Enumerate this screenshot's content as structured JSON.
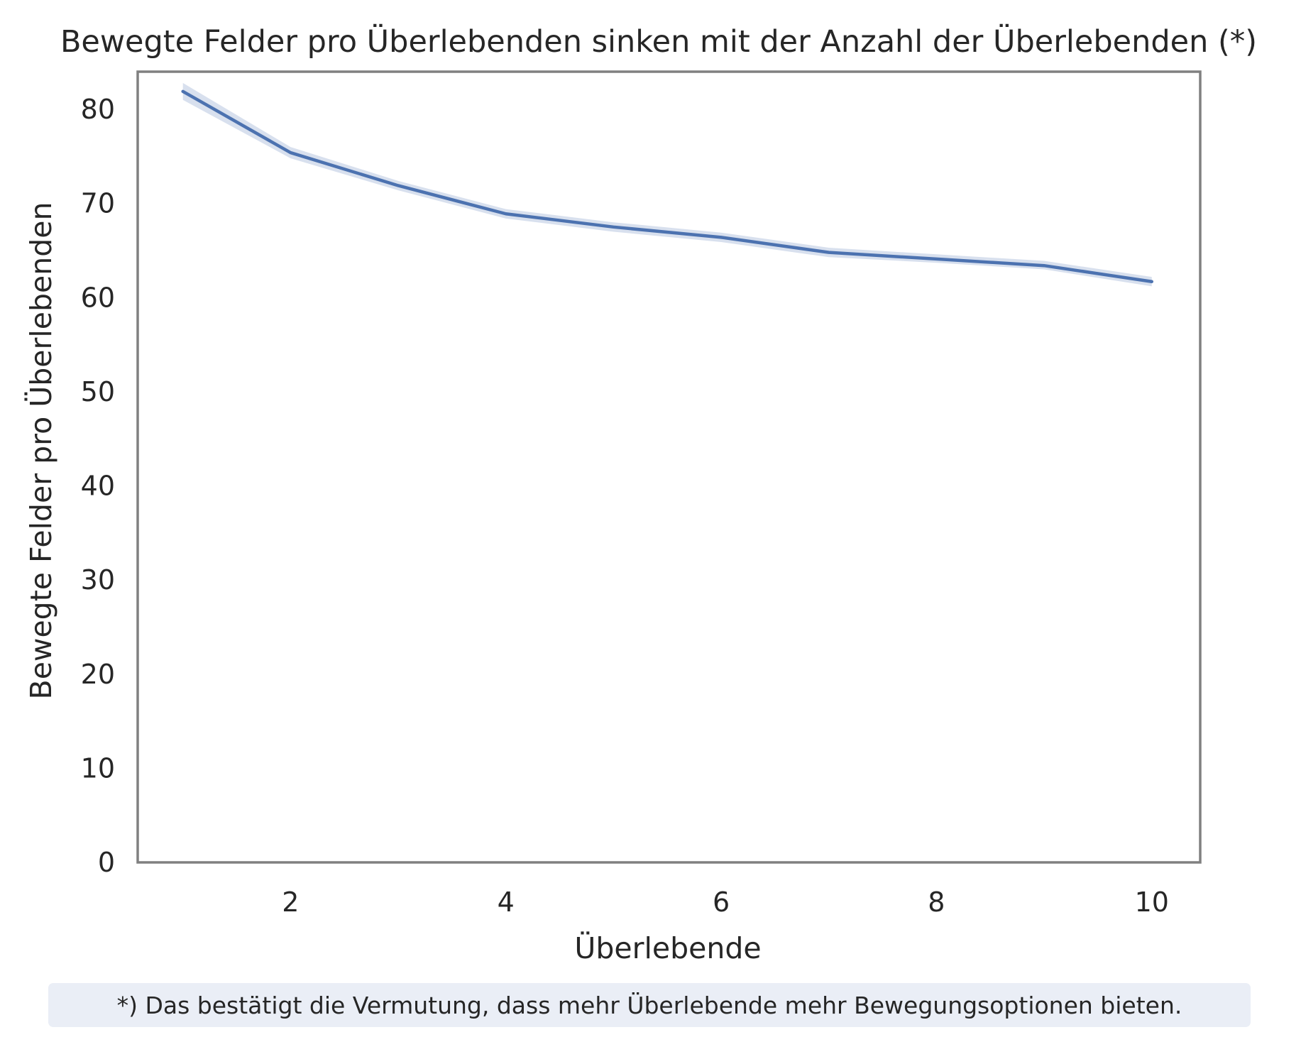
{
  "chart_data": {
    "type": "line",
    "title": "Bewegte Felder pro Überlebenden sinken mit der Anzahl der Überlebenden (*)",
    "xlabel": "Überlebende",
    "ylabel": "Bewegte Felder pro Überlebenden",
    "x": [
      1,
      2,
      3,
      4,
      5,
      6,
      7,
      8,
      9,
      10
    ],
    "series": [
      {
        "values": [
          81.9,
          75.4,
          71.9,
          68.9,
          67.5,
          66.4,
          64.8,
          64.1,
          63.4,
          61.7
        ],
        "ci_lower": [
          81.0,
          74.8,
          71.4,
          68.4,
          67.0,
          65.9,
          64.3,
          63.7,
          63.0,
          61.2
        ],
        "ci_upper": [
          82.8,
          76.0,
          72.4,
          69.4,
          68.0,
          66.9,
          65.3,
          64.6,
          63.9,
          62.2
        ]
      }
    ],
    "xticks": [
      2,
      4,
      6,
      8,
      10
    ],
    "yticks": [
      0,
      10,
      20,
      30,
      40,
      50,
      60,
      70,
      80
    ],
    "xlim": [
      0.58,
      10.45
    ],
    "ylim": [
      0,
      84
    ],
    "grid": false,
    "legend": "none",
    "colors": {
      "line": "#4c72b0",
      "band": "#4c72b0",
      "frame": "#808080",
      "text": "#262626"
    }
  },
  "footnote": "*) Das bestätigt die Vermutung, dass mehr Überlebende mehr Bewegungsoptionen bieten."
}
